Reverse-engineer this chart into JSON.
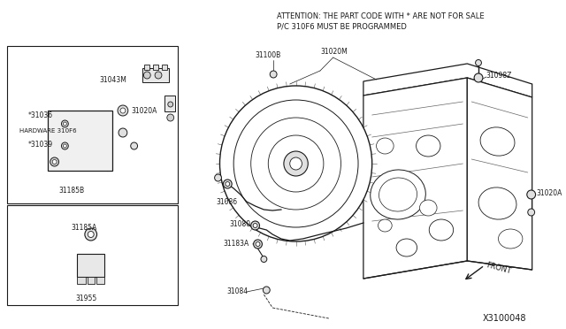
{
  "bg_color": "#ffffff",
  "line_color": "#1a1a1a",
  "text_color": "#1a1a1a",
  "attention_line1": "ATTENTION: THE PART CODE WITH * ARE NOT FOR SALE",
  "attention_line2": "P/C 310F6 MUST BE PROGRAMMED",
  "diagram_id": "X3100048",
  "font_size": 6.5,
  "font_size_sm": 5.5,
  "font_size_id": 7
}
